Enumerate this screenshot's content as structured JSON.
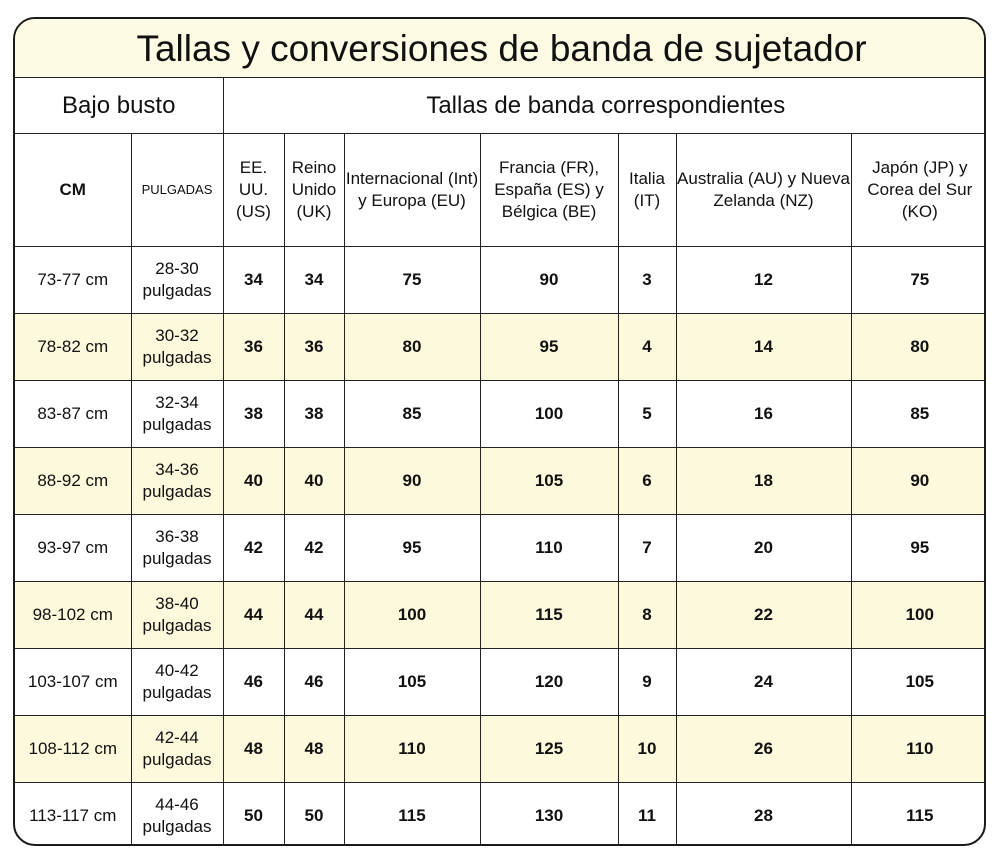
{
  "title": "Tallas y conversiones de banda de sujetador",
  "header": {
    "underbust": "Bajo busto",
    "band_sizes": "Tallas de banda correspondientes",
    "columns": [
      "CM",
      "PULGADAS",
      "EE. UU. (US)",
      "Reino Unido (UK)",
      "Internacional (Int) y Europa (EU)",
      "Francia (FR), España (ES) y Bélgica (BE)",
      "Italia (IT)",
      "Australia (AU) y Nueva Zelanda (NZ)",
      "Japón (JP) y Corea del Sur (KO)"
    ]
  },
  "colors": {
    "title_bg": "#fdfbe3",
    "stripe_bg": "#fdf9dc",
    "border": "#222222"
  },
  "rows": [
    [
      "73-77 cm",
      "28-30 pulgadas",
      "34",
      "34",
      "75",
      "90",
      "3",
      "12",
      "75"
    ],
    [
      "78-82 cm",
      "30-32 pulgadas",
      "36",
      "36",
      "80",
      "95",
      "4",
      "14",
      "80"
    ],
    [
      "83-87 cm",
      "32-34 pulgadas",
      "38",
      "38",
      "85",
      "100",
      "5",
      "16",
      "85"
    ],
    [
      "88-92 cm",
      "34-36 pulgadas",
      "40",
      "40",
      "90",
      "105",
      "6",
      "18",
      "90"
    ],
    [
      "93-97 cm",
      "36-38 pulgadas",
      "42",
      "42",
      "95",
      "110",
      "7",
      "20",
      "95"
    ],
    [
      "98-102 cm",
      "38-40 pulgadas",
      "44",
      "44",
      "100",
      "115",
      "8",
      "22",
      "100"
    ],
    [
      "103-107 cm",
      "40-42 pulgadas",
      "46",
      "46",
      "105",
      "120",
      "9",
      "24",
      "105"
    ],
    [
      "108-112 cm",
      "42-44 pulgadas",
      "48",
      "48",
      "110",
      "125",
      "10",
      "26",
      "110"
    ],
    [
      "113-117 cm",
      "44-46 pulgadas",
      "50",
      "50",
      "115",
      "130",
      "11",
      "28",
      "115"
    ]
  ]
}
